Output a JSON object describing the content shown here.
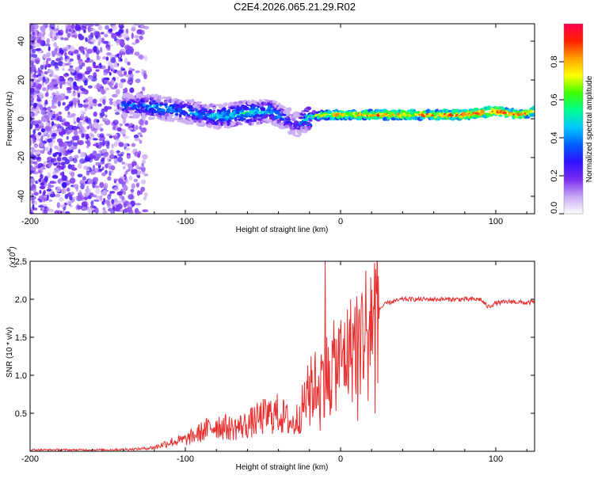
{
  "title": "C2E4.2026.065.21.29.R02",
  "chart_data": [
    {
      "type": "heatmap",
      "title": "",
      "xlabel": "Height of straight line (km)",
      "ylabel": "Frequency (Hz)",
      "xlim": [
        -200,
        125
      ],
      "ylim": [
        -49,
        49
      ],
      "x_ticks": [
        -200,
        -100,
        0,
        100
      ],
      "x_tick_labels": [
        "-200",
        "-100",
        "0",
        "100"
      ],
      "y_ticks": [
        -40,
        -20,
        0,
        20,
        40
      ],
      "y_tick_labels": [
        "-40",
        "-20",
        "0",
        "20",
        "40"
      ],
      "colorbar": {
        "label": "Normalized spectral amplitude",
        "range": [
          0,
          1
        ],
        "ticks": [
          0.0,
          0.2,
          0.4,
          0.6,
          0.8
        ],
        "tick_labels": [
          "0.0",
          "0.2",
          "0.4",
          "0.6",
          "0.8"
        ],
        "colors": [
          "#ffffff",
          "#c8a6f5",
          "#7a2cf0",
          "#2d10ff",
          "#0060ff",
          "#00c8ff",
          "#00ff90",
          "#40ff00",
          "#ffff00",
          "#ffa000",
          "#ff2000",
          "#ff0050"
        ]
      },
      "ridge": {
        "description_free": true,
        "x": [
          -135,
          -120,
          -100,
          -80,
          -60,
          -45,
          -35,
          -28,
          -20,
          -10,
          0,
          20,
          50,
          80,
          100,
          115,
          125
        ],
        "frequency": [
          7,
          6,
          4,
          1,
          3,
          4,
          0,
          -3,
          1,
          2,
          2,
          2,
          2,
          2,
          4,
          2,
          4
        ],
        "amplitude": [
          0.35,
          0.45,
          0.4,
          0.45,
          0.5,
          0.45,
          0.35,
          0.3,
          0.55,
          0.75,
          0.8,
          0.85,
          0.85,
          0.9,
          0.9,
          0.85,
          0.85
        ]
      }
    },
    {
      "type": "line",
      "title": "",
      "xlabel": "Height of straight line (km)",
      "ylabel": "SNR (10 * v/v)",
      "y_multiplier_label": "(x10",
      "y_multiplier_exp": "4",
      "y_multiplier_close": ")",
      "xlim": [
        -200,
        125
      ],
      "ylim": [
        0,
        2.5
      ],
      "x_ticks": [
        -200,
        -100,
        0,
        100
      ],
      "x_tick_labels": [
        "-200",
        "-100",
        "0",
        "100"
      ],
      "y_ticks": [
        0.5,
        1.0,
        1.5,
        2.0,
        2.5
      ],
      "y_tick_labels": [
        "0.5",
        "1.0",
        "1.5",
        "2.0",
        "2.5"
      ],
      "color": "#e83030",
      "envelope": {
        "x": [
          -200,
          -150,
          -130,
          -120,
          -110,
          -100,
          -90,
          -80,
          -70,
          -60,
          -50,
          -40,
          -30,
          -25,
          -20,
          -15,
          -10,
          -5,
          0,
          5,
          10,
          15,
          20,
          30,
          40,
          60,
          80,
          90,
          95,
          100,
          110,
          120,
          125
        ],
        "y": [
          0.02,
          0.02,
          0.03,
          0.05,
          0.12,
          0.15,
          0.25,
          0.35,
          0.3,
          0.35,
          0.45,
          0.5,
          0.35,
          0.55,
          0.8,
          0.9,
          1.0,
          1.1,
          1.2,
          1.3,
          1.45,
          1.6,
          1.8,
          1.95,
          2.0,
          2.0,
          2.0,
          2.0,
          1.9,
          1.95,
          1.97,
          1.95,
          1.97
        ]
      },
      "spike": {
        "x": -10,
        "y": 2.52
      }
    }
  ]
}
